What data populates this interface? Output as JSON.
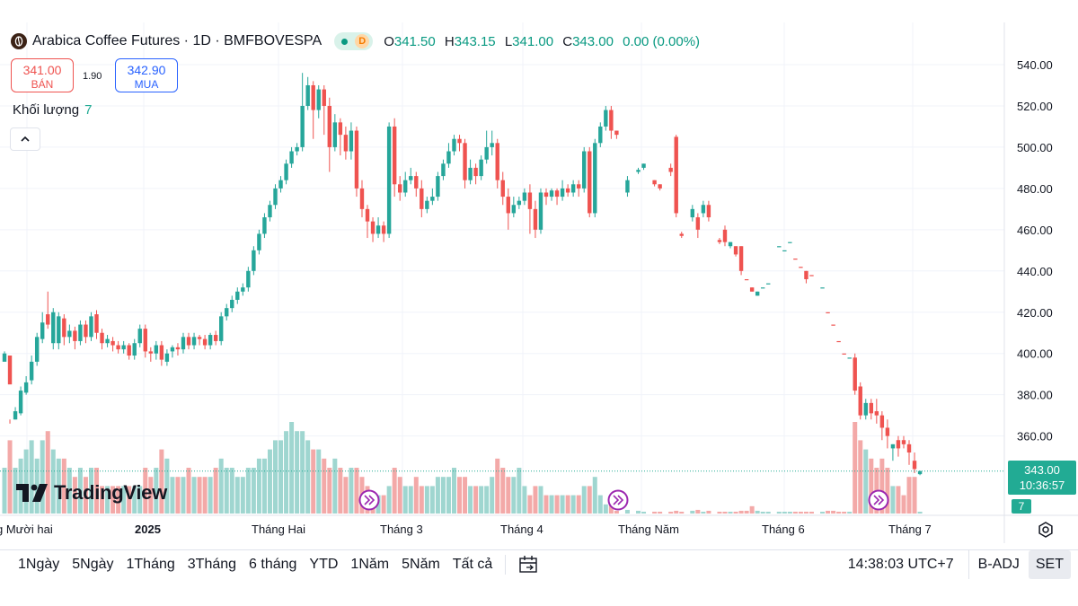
{
  "header": {
    "title": "Arabica Coffee Futures · 1D · BMFBOVESPA",
    "badge": "D",
    "ohlc": [
      {
        "k": "O",
        "v": "341.50"
      },
      {
        "k": "H",
        "v": "343.15"
      },
      {
        "k": "L",
        "v": "341.00"
      },
      {
        "k": "C",
        "v": "343.00"
      }
    ],
    "change": "0.00 (0.00%)"
  },
  "trade": {
    "sell_price": "341.00",
    "sell_label": "BÁN",
    "spread": "1.90",
    "buy_price": "342.90",
    "buy_label": "MUA"
  },
  "volume_legend": {
    "label": "Khối lượng",
    "value": "7"
  },
  "watermark": "TradingView",
  "last_price": {
    "price": "343.00",
    "time": "10:36:57",
    "volume": "7"
  },
  "bottom_bar": {
    "ranges": [
      "1Ngày",
      "5Ngày",
      "1Tháng",
      "3Tháng",
      "6 tháng",
      "YTD",
      "1Năm",
      "5Năm",
      "Tất cả"
    ],
    "clock": "14:38:03 UTC+7",
    "adjust": "B-ADJ",
    "session": "SET"
  },
  "colors": {
    "up": "#26a69a",
    "down": "#ef5350",
    "vol_up": "#9fd6d0",
    "vol_down": "#f3a9a8",
    "last": "#22ab94"
  },
  "chart_data": {
    "type": "candlestick",
    "y_ticks": [
      360,
      380,
      400,
      420,
      440,
      460,
      480,
      500,
      520,
      540
    ],
    "ylim": [
      332,
      544
    ],
    "x_labels": [
      "g Mười hai",
      "2025",
      "Tháng Hai",
      "Tháng 3",
      "Tháng 4",
      "Tháng Năm",
      "Tháng 6",
      "Tháng 7"
    ],
    "last_price": 343.0,
    "series": [
      [
        1,
        396,
        400,
        397,
        401,
        0,
        5
      ],
      [
        2,
        385,
        399,
        368,
        366,
        1,
        8
      ],
      [
        3,
        368,
        372,
        368,
        374,
        0,
        5
      ],
      [
        4,
        371,
        382,
        370,
        384,
        0,
        6
      ],
      [
        5,
        381,
        386,
        380,
        389,
        0,
        7
      ],
      [
        6,
        387,
        396,
        385,
        399,
        0,
        8
      ],
      [
        7,
        396,
        408,
        394,
        410,
        0,
        6
      ],
      [
        8,
        407,
        415,
        405,
        420,
        0,
        8
      ],
      [
        9,
        414,
        419,
        412,
        430,
        1,
        9
      ],
      [
        10,
        420,
        405,
        402,
        422,
        0,
        7
      ],
      [
        11,
        405,
        418,
        402,
        420,
        0,
        6
      ],
      [
        12,
        417,
        408,
        404,
        419,
        1,
        6
      ],
      [
        13,
        408,
        411,
        405,
        414,
        0,
        5
      ],
      [
        14,
        411,
        406,
        402,
        413,
        1,
        4
      ],
      [
        15,
        406,
        414,
        404,
        416,
        0,
        5
      ],
      [
        16,
        414,
        408,
        405,
        416,
        1,
        4
      ],
      [
        17,
        408,
        418,
        406,
        420,
        0,
        5
      ],
      [
        18,
        419,
        410,
        407,
        421,
        1,
        5
      ],
      [
        19,
        410,
        405,
        402,
        412,
        1,
        3
      ],
      [
        20,
        405,
        407,
        403,
        409,
        0,
        3
      ],
      [
        21,
        406,
        404,
        401,
        408,
        1,
        3
      ],
      [
        22,
        404,
        402,
        400,
        406,
        1,
        3
      ],
      [
        23,
        402,
        404,
        400,
        406,
        0,
        3
      ],
      [
        24,
        404,
        399,
        397,
        405,
        1,
        3
      ],
      [
        25,
        399,
        405,
        397,
        407,
        0,
        3
      ],
      [
        26,
        405,
        412,
        403,
        414,
        0,
        3
      ],
      [
        27,
        412,
        401,
        398,
        414,
        1,
        5
      ],
      [
        28,
        401,
        400,
        396,
        403,
        1,
        4
      ],
      [
        29,
        400,
        404,
        397,
        406,
        0,
        5
      ],
      [
        30,
        404,
        397,
        394,
        406,
        1,
        7
      ],
      [
        31,
        396,
        400,
        394,
        402,
        0,
        6
      ],
      [
        32,
        401,
        403,
        398,
        404,
        0,
        4
      ],
      [
        33,
        403,
        402,
        399,
        405,
        1,
        4
      ],
      [
        34,
        402,
        408,
        400,
        410,
        0,
        4
      ],
      [
        35,
        408,
        404,
        402,
        410,
        1,
        5
      ],
      [
        36,
        404,
        408,
        402,
        410,
        0,
        4
      ],
      [
        37,
        408,
        407,
        404,
        409,
        1,
        4
      ],
      [
        38,
        407,
        404,
        402,
        409,
        1,
        4
      ],
      [
        39,
        404,
        409,
        402,
        410,
        0,
        4
      ],
      [
        40,
        409,
        406,
        404,
        411,
        1,
        5
      ],
      [
        41,
        406,
        418,
        404,
        420,
        0,
        6
      ],
      [
        42,
        418,
        422,
        416,
        424,
        0,
        5
      ],
      [
        43,
        422,
        426,
        420,
        428,
        0,
        5
      ],
      [
        44,
        426,
        430,
        424,
        432,
        0,
        4
      ],
      [
        45,
        430,
        432,
        428,
        434,
        0,
        4
      ],
      [
        46,
        432,
        440,
        430,
        442,
        0,
        5
      ],
      [
        47,
        440,
        450,
        438,
        452,
        0,
        5
      ],
      [
        48,
        450,
        458,
        448,
        460,
        0,
        6
      ],
      [
        49,
        458,
        466,
        456,
        468,
        0,
        6
      ],
      [
        50,
        466,
        472,
        464,
        474,
        0,
        7
      ],
      [
        51,
        472,
        480,
        470,
        482,
        0,
        8
      ],
      [
        52,
        480,
        484,
        478,
        486,
        0,
        8
      ],
      [
        53,
        484,
        492,
        482,
        494,
        0,
        9
      ],
      [
        54,
        492,
        498,
        490,
        500,
        0,
        10
      ],
      [
        55,
        498,
        500,
        496,
        502,
        0,
        9
      ],
      [
        56,
        500,
        520,
        498,
        536,
        0,
        9
      ],
      [
        57,
        520,
        530,
        518,
        534,
        0,
        8
      ],
      [
        58,
        530,
        518,
        504,
        532,
        1,
        7
      ],
      [
        59,
        518,
        528,
        514,
        530,
        0,
        7
      ],
      [
        60,
        528,
        520,
        506,
        530,
        1,
        6
      ],
      [
        61,
        520,
        500,
        488,
        524,
        1,
        5
      ],
      [
        62,
        500,
        512,
        498,
        516,
        0,
        6
      ],
      [
        63,
        512,
        506,
        496,
        514,
        1,
        5
      ],
      [
        64,
        506,
        498,
        494,
        510,
        1,
        4
      ],
      [
        65,
        498,
        508,
        494,
        512,
        0,
        5
      ],
      [
        66,
        508,
        480,
        476,
        510,
        1,
        5
      ],
      [
        67,
        480,
        470,
        466,
        484,
        1,
        4
      ],
      [
        68,
        470,
        464,
        456,
        472,
        1,
        3
      ],
      [
        69,
        464,
        458,
        454,
        466,
        1,
        2
      ],
      [
        70,
        458,
        462,
        456,
        466,
        0,
        2
      ],
      [
        71,
        462,
        458,
        454,
        464,
        1,
        2
      ],
      [
        72,
        458,
        510,
        456,
        512,
        0,
        3
      ],
      [
        73,
        510,
        482,
        476,
        514,
        1,
        5
      ],
      [
        74,
        482,
        478,
        474,
        486,
        1,
        4
      ],
      [
        75,
        478,
        484,
        476,
        488,
        0,
        3
      ],
      [
        76,
        484,
        486,
        482,
        490,
        0,
        3
      ],
      [
        77,
        486,
        480,
        476,
        488,
        1,
        4
      ],
      [
        78,
        480,
        470,
        466,
        484,
        1,
        3
      ],
      [
        79,
        470,
        474,
        468,
        476,
        0,
        3
      ],
      [
        80,
        474,
        476,
        472,
        480,
        0,
        3
      ],
      [
        81,
        476,
        486,
        474,
        488,
        0,
        4
      ],
      [
        82,
        486,
        492,
        484,
        494,
        0,
        4
      ],
      [
        83,
        492,
        498,
        490,
        502,
        0,
        4
      ],
      [
        84,
        498,
        504,
        496,
        506,
        0,
        5
      ],
      [
        85,
        504,
        502,
        498,
        506,
        1,
        4
      ],
      [
        86,
        502,
        484,
        480,
        504,
        1,
        4
      ],
      [
        87,
        484,
        490,
        482,
        494,
        0,
        3
      ],
      [
        88,
        490,
        486,
        482,
        492,
        1,
        3
      ],
      [
        89,
        486,
        494,
        484,
        496,
        0,
        3
      ],
      [
        90,
        494,
        500,
        492,
        508,
        0,
        3
      ],
      [
        91,
        500,
        502,
        496,
        508,
        0,
        4
      ],
      [
        92,
        502,
        484,
        480,
        504,
        1,
        6
      ],
      [
        93,
        484,
        476,
        472,
        488,
        1,
        5
      ],
      [
        94,
        476,
        468,
        460,
        480,
        1,
        4
      ],
      [
        95,
        468,
        472,
        466,
        476,
        0,
        4
      ],
      [
        96,
        472,
        474,
        470,
        476,
        0,
        5
      ],
      [
        97,
        474,
        478,
        472,
        480,
        0,
        3
      ],
      [
        98,
        478,
        470,
        458,
        482,
        1,
        2
      ],
      [
        99,
        470,
        460,
        456,
        474,
        1,
        3
      ],
      [
        100,
        460,
        478,
        458,
        480,
        0,
        3
      ],
      [
        101,
        478,
        476,
        472,
        480,
        1,
        2
      ],
      [
        102,
        476,
        479,
        474,
        480,
        0,
        2
      ],
      [
        103,
        479,
        476,
        472,
        480,
        1,
        2
      ],
      [
        104,
        476,
        480,
        474,
        484,
        0,
        2
      ],
      [
        105,
        480,
        478,
        476,
        482,
        1,
        2
      ],
      [
        106,
        478,
        482,
        476,
        484,
        0,
        2
      ],
      [
        107,
        482,
        480,
        476,
        484,
        1,
        2
      ],
      [
        108,
        480,
        498,
        478,
        500,
        0,
        3
      ],
      [
        109,
        498,
        468,
        466,
        500,
        1,
        3
      ],
      [
        110,
        468,
        502,
        466,
        504,
        0,
        4
      ],
      [
        111,
        502,
        510,
        500,
        512,
        0,
        2
      ],
      [
        112,
        510,
        518,
        508,
        520,
        0,
        1
      ],
      [
        113,
        518,
        508,
        504,
        520,
        1,
        1
      ],
      [
        114,
        508,
        506,
        504,
        508,
        1,
        0.3
      ],
      [
        116,
        484,
        478,
        476,
        486,
        0,
        0.4
      ],
      [
        118,
        488,
        489,
        487,
        490,
        0,
        0.3
      ],
      [
        119,
        490,
        492,
        489,
        492,
        0,
        0.2
      ],
      [
        121,
        484,
        482,
        481,
        484,
        1,
        0.2
      ],
      [
        122,
        482,
        480,
        479,
        482,
        1,
        0.2
      ],
      [
        124,
        490,
        488,
        486,
        492,
        1,
        0.2
      ],
      [
        125,
        505,
        468,
        466,
        506,
        1,
        0.3
      ],
      [
        126,
        458,
        457,
        456,
        459,
        1,
        0.2
      ],
      [
        128,
        470,
        466,
        464,
        472,
        0,
        0.3
      ],
      [
        129,
        466,
        460,
        456,
        468,
        1,
        0.4
      ],
      [
        130,
        472,
        468,
        466,
        474,
        0,
        0.2
      ],
      [
        131,
        472,
        466,
        464,
        474,
        1,
        0.3
      ],
      [
        133,
        455,
        454,
        453,
        456,
        1,
        0.2
      ],
      [
        134,
        460,
        454,
        452,
        462,
        1,
        0.2
      ],
      [
        135,
        454,
        452,
        451,
        454,
        0,
        0.2
      ],
      [
        136,
        452,
        448,
        447,
        452,
        1,
        0.2
      ],
      [
        137,
        452,
        440,
        438,
        452,
        1,
        0.3
      ],
      [
        138,
        436,
        436,
        436,
        436,
        1,
        0.3
      ],
      [
        139,
        432,
        430,
        430,
        432,
        1,
        0.8
      ],
      [
        140,
        430,
        428,
        428,
        430,
        0,
        0.3
      ],
      [
        141,
        432,
        432,
        432,
        432,
        0,
        0.2
      ],
      [
        142,
        434,
        434,
        434,
        434,
        0,
        0.2
      ],
      [
        144,
        452,
        452,
        452,
        452,
        0,
        0.2
      ],
      [
        145,
        450,
        450,
        450,
        450,
        0,
        0.2
      ],
      [
        146,
        454,
        454,
        454,
        454,
        0,
        0.2
      ],
      [
        147,
        446,
        446,
        446,
        446,
        1,
        0.2
      ],
      [
        148,
        442,
        442,
        442,
        442,
        1,
        0.2
      ],
      [
        149,
        440,
        436,
        434,
        440,
        1,
        0.2
      ],
      [
        150,
        438,
        438,
        438,
        438,
        1,
        0.2
      ],
      [
        152,
        432,
        432,
        432,
        432,
        0,
        0.2
      ],
      [
        153,
        420,
        420,
        420,
        420,
        1,
        0.3
      ],
      [
        154,
        414,
        414,
        414,
        414,
        1,
        0.3
      ],
      [
        155,
        406,
        406,
        406,
        406,
        1,
        0.2
      ],
      [
        156,
        400,
        400,
        400,
        400,
        1,
        0.2
      ],
      [
        157,
        398,
        398,
        398,
        398,
        0,
        0.2
      ],
      [
        158,
        398,
        382,
        380,
        400,
        1,
        10
      ],
      [
        159,
        384,
        370,
        368,
        386,
        1,
        8
      ],
      [
        160,
        370,
        376,
        368,
        378,
        0,
        7
      ],
      [
        161,
        376,
        371,
        368,
        378,
        1,
        6
      ],
      [
        162,
        372,
        370,
        366,
        378,
        1,
        5
      ],
      [
        163,
        370,
        364,
        358,
        372,
        1,
        6
      ],
      [
        164,
        364,
        360,
        354,
        368,
        1,
        5
      ],
      [
        165,
        356,
        354,
        348,
        356,
        0,
        3
      ],
      [
        166,
        354,
        358,
        350,
        360,
        1,
        3
      ],
      [
        167,
        358,
        356,
        354,
        360,
        1,
        2
      ],
      [
        168,
        356,
        352,
        346,
        358,
        1,
        4
      ],
      [
        169,
        348,
        344,
        342,
        352,
        1,
        4
      ],
      [
        170,
        341.5,
        343,
        341,
        343.2,
        0,
        0.2
      ]
    ]
  }
}
